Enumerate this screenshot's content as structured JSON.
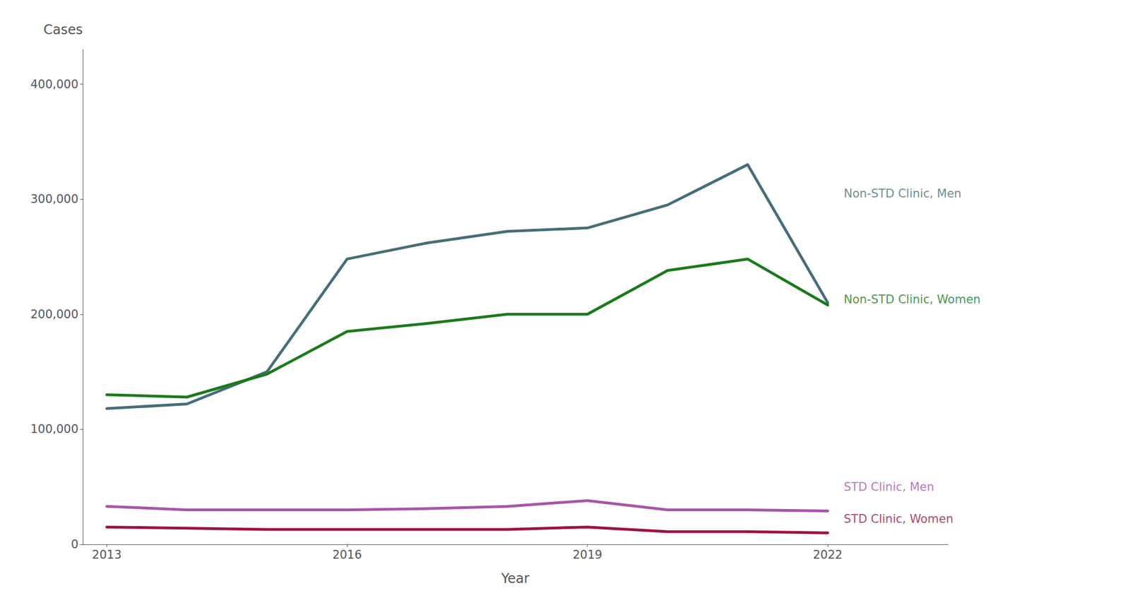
{
  "chart_data": {
    "type": "line",
    "xlabel": "Year",
    "ylabel": "Cases",
    "x": [
      2013,
      2014,
      2015,
      2016,
      2017,
      2018,
      2019,
      2020,
      2021,
      2022
    ],
    "series": [
      {
        "name": "Non-STD Clinic, Men",
        "color": "#456e78",
        "values": [
          118000,
          122000,
          150000,
          248000,
          262000,
          272000,
          275000,
          295000,
          330000,
          210000
        ]
      },
      {
        "name": "Non-STD Clinic, Women",
        "color": "#1a7a1a",
        "values": [
          130000,
          128000,
          148000,
          185000,
          192000,
          200000,
          200000,
          238000,
          248000,
          208000
        ]
      },
      {
        "name": "STD Clinic, Men",
        "color": "#a855a8",
        "values": [
          33000,
          30000,
          30000,
          30000,
          31000,
          33000,
          38000,
          30000,
          30000,
          29000
        ]
      },
      {
        "name": "STD Clinic, Women",
        "color": "#a01040",
        "values": [
          15000,
          14000,
          13000,
          13000,
          13000,
          13000,
          15000,
          11000,
          11000,
          10000
        ]
      }
    ],
    "annotations": [
      {
        "text": "Non-STD Clinic, Men",
        "x": 2022.2,
        "y": 305000,
        "color": "#456e78"
      },
      {
        "text": "Non-STD Clinic, Women",
        "x": 2022.2,
        "y": 213000,
        "color": "#1a7a1a"
      },
      {
        "text": "STD Clinic, Men",
        "x": 2022.2,
        "y": 50000,
        "color": "#a855a8"
      },
      {
        "text": "STD Clinic, Women",
        "x": 2022.2,
        "y": 22000,
        "color": "#a01040"
      }
    ],
    "xlim": [
      2012.7,
      2023.5
    ],
    "xticks": [
      2013,
      2016,
      2019,
      2022
    ],
    "ylim": [
      0,
      430000
    ],
    "yticks": [
      0,
      {
        "value": 100000,
        "label": "100,000"
      },
      {
        "value": 200000,
        "label": "200,000"
      },
      {
        "value": 300000,
        "label": "300,000"
      },
      {
        "value": 400000,
        "label": "400,000"
      }
    ],
    "grid": false
  }
}
